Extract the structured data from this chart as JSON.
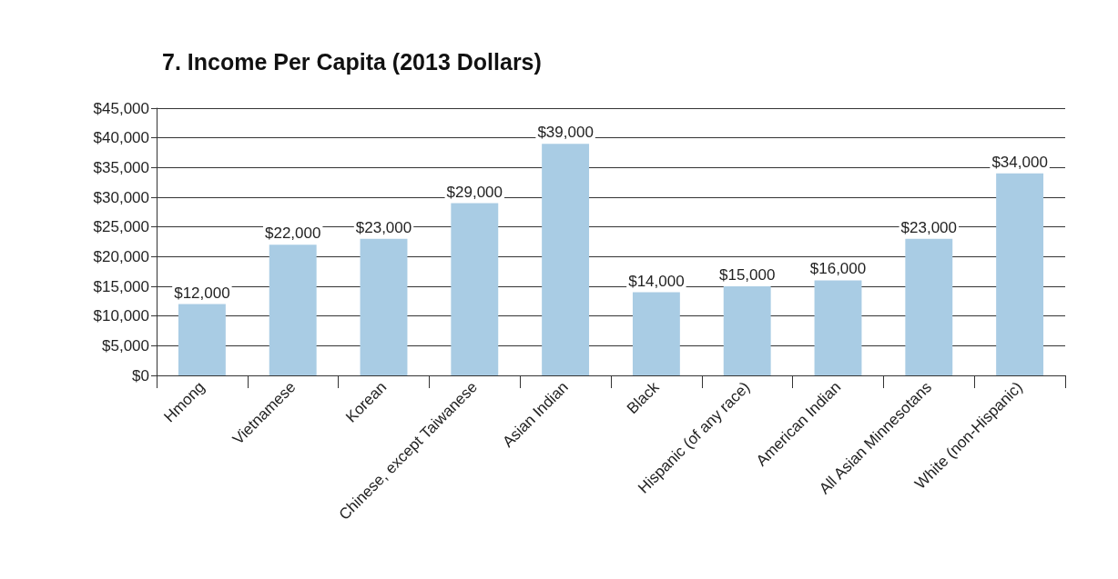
{
  "chart_data": {
    "type": "bar",
    "title": "7. Income Per Capita (2013 Dollars)",
    "categories": [
      "Hmong",
      "Vietnamese",
      "Korean",
      "Chinese, except Taiwanese",
      "Asian Indian",
      "Black",
      "Hispanic (of any race)",
      "American Indian",
      "All Asian Minnesotans",
      "White (non-Hispanic)"
    ],
    "values": [
      12000,
      22000,
      23000,
      29000,
      39000,
      14000,
      15000,
      16000,
      23000,
      34000
    ],
    "value_labels": [
      "$12,000",
      "$22,000",
      "$23,000",
      "$29,000",
      "$39,000",
      "$14,000",
      "$15,000",
      "$16,000",
      "$23,000",
      "$34,000"
    ],
    "color": "#a9cce4",
    "ylim": [
      0,
      45000
    ],
    "yticks": [
      {
        "value": 0,
        "label": "$0"
      },
      {
        "value": 5000,
        "label": "$5,000"
      },
      {
        "value": 10000,
        "label": "$10,000"
      },
      {
        "value": 15000,
        "label": "$15,000"
      },
      {
        "value": 20000,
        "label": "$20,000"
      },
      {
        "value": 25000,
        "label": "$25,000"
      },
      {
        "value": 30000,
        "label": "$30,000"
      },
      {
        "value": 35000,
        "label": "$35,000"
      },
      {
        "value": 40000,
        "label": "$40,000"
      },
      {
        "value": 45000,
        "label": "$45,000"
      }
    ],
    "grid": "y"
  }
}
